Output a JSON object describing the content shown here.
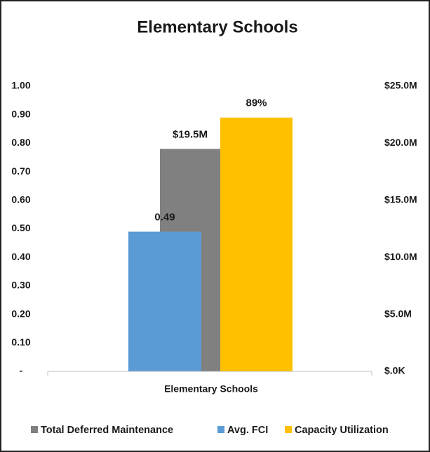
{
  "chart_data": {
    "type": "bar",
    "title": "Elementary Schools",
    "categories": [
      "Elementary Schools"
    ],
    "series": [
      {
        "name": "Total Deferred Maintenance",
        "color": "#808080",
        "axis": "y2",
        "values": [
          19500000
        ],
        "value_labels": [
          "$19.5M"
        ]
      },
      {
        "name": "Avg. FCI",
        "color": "#5b9bd5",
        "values": [
          0.49
        ],
        "value_labels": [
          "0.49"
        ]
      },
      {
        "name": "Capacity Utilization",
        "color": "#ffc000",
        "values": [
          0.89
        ],
        "value_labels": [
          "89%"
        ]
      }
    ],
    "ylim": [
      0,
      1
    ],
    "yticks": [
      {
        "value": 0,
        "label": "-"
      },
      {
        "value": 0.1,
        "label": "0.10"
      },
      {
        "value": 0.2,
        "label": "0.20"
      },
      {
        "value": 0.3,
        "label": "0.30"
      },
      {
        "value": 0.4,
        "label": "0.40"
      },
      {
        "value": 0.5,
        "label": "0.50"
      },
      {
        "value": 0.6,
        "label": "0.60"
      },
      {
        "value": 0.7,
        "label": "0.70"
      },
      {
        "value": 0.8,
        "label": "0.80"
      },
      {
        "value": 0.9,
        "label": "0.90"
      },
      {
        "value": 1,
        "label": "1.00"
      }
    ],
    "y2lim": [
      0,
      25000000
    ],
    "y2ticks": [
      {
        "value": 0,
        "label": "$.0K"
      },
      {
        "value": 5000000,
        "label": "$5.0M"
      },
      {
        "value": 10000000,
        "label": "$10.0M"
      },
      {
        "value": 15000000,
        "label": "$15.0M"
      },
      {
        "value": 20000000,
        "label": "$20.0M"
      },
      {
        "value": 25000000,
        "label": "$25.0M"
      }
    ],
    "grid": false
  }
}
